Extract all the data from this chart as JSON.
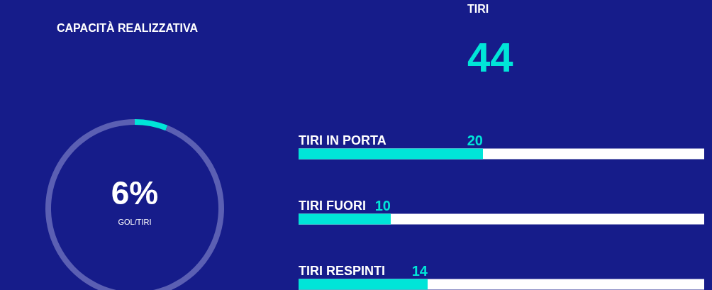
{
  "chart_data": [
    {
      "type": "donut",
      "title": "CAPACITÀ REALIZZATIVA",
      "categories": [
        null,
        null
      ],
      "values": [
        6,
        94
      ],
      "colors": [
        "#00e5d8",
        "#5b5fb3"
      ],
      "annotations": [
        "6%",
        "GOL/TIRI"
      ]
    },
    {
      "type": "bar",
      "orientation": "horizontal",
      "title": "TIRI",
      "subtitle": "44",
      "categories": [
        "TIRI IN PORTA",
        "TIRI FUORI",
        "TIRI RESPINTI"
      ],
      "xlim": [
        0,
        44
      ],
      "series": [
        {
          "color": "#00e5d8",
          "values": [
            20,
            10,
            14
          ],
          "value_labels": [
            "20",
            "10",
            "14"
          ]
        }
      ]
    }
  ]
}
